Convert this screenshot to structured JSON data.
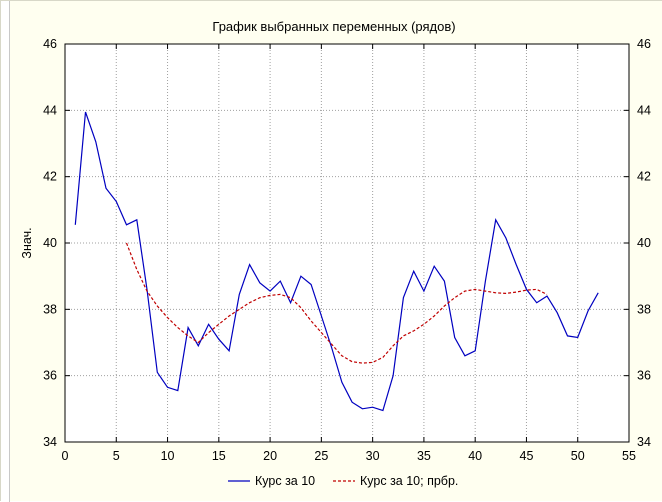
{
  "chart_data": {
    "type": "line",
    "title": "График выбранных переменных (рядов)",
    "xlabel": "",
    "ylabel": "Знач.",
    "xlim": [
      0,
      55
    ],
    "ylim": [
      34,
      46
    ],
    "xticks": [
      0,
      5,
      10,
      15,
      20,
      25,
      30,
      35,
      40,
      45,
      50,
      55
    ],
    "yticks": [
      34,
      36,
      38,
      40,
      42,
      44,
      46
    ],
    "grid": true,
    "legend_position": "bottom",
    "series": [
      {
        "name": "Курс за 10",
        "color": "#0000c0",
        "dash": "solid",
        "x": [
          1,
          2,
          3,
          4,
          5,
          6,
          7,
          8,
          9,
          10,
          11,
          12,
          13,
          14,
          15,
          16,
          17,
          18,
          19,
          20,
          21,
          22,
          23,
          24,
          25,
          26,
          27,
          28,
          29,
          30,
          31,
          32,
          33,
          34,
          35,
          36,
          37,
          38,
          39,
          40,
          41,
          42,
          43,
          44,
          45,
          46,
          47,
          48,
          49,
          50,
          51,
          52
        ],
        "values": [
          40.55,
          43.95,
          43.05,
          41.65,
          41.25,
          40.55,
          40.7,
          38.6,
          36.1,
          35.65,
          35.55,
          37.45,
          36.9,
          37.55,
          37.1,
          36.75,
          38.45,
          39.35,
          38.8,
          38.55,
          38.85,
          38.2,
          39.0,
          38.75,
          37.8,
          36.85,
          35.8,
          35.2,
          35.0,
          35.05,
          34.95,
          36.0,
          38.35,
          39.15,
          38.55,
          39.3,
          38.85,
          37.15,
          36.6,
          36.75,
          38.85,
          40.7,
          40.15,
          39.35,
          38.6,
          38.2,
          38.4,
          37.9,
          37.2,
          37.15,
          37.95,
          38.5
        ]
      },
      {
        "name": "Курс за 10; прбр.",
        "color": "#c00000",
        "dash": "dashed",
        "x": [
          6,
          7,
          8,
          9,
          10,
          11,
          12,
          13,
          14,
          15,
          16,
          17,
          18,
          19,
          20,
          21,
          22,
          23,
          24,
          25,
          26,
          27,
          28,
          29,
          30,
          31,
          32,
          33,
          34,
          35,
          36,
          37,
          38,
          39,
          40,
          41,
          42,
          43,
          44,
          45,
          46,
          47
        ],
        "values": [
          40.0,
          39.2,
          38.55,
          38.1,
          37.75,
          37.45,
          37.2,
          37.0,
          37.3,
          37.55,
          37.8,
          38.0,
          38.2,
          38.35,
          38.42,
          38.45,
          38.35,
          38.05,
          37.65,
          37.3,
          36.95,
          36.6,
          36.42,
          36.38,
          36.4,
          36.55,
          36.9,
          37.2,
          37.35,
          37.55,
          37.8,
          38.1,
          38.35,
          38.55,
          38.6,
          38.55,
          38.5,
          38.48,
          38.52,
          38.58,
          38.6,
          38.45
        ]
      }
    ]
  }
}
